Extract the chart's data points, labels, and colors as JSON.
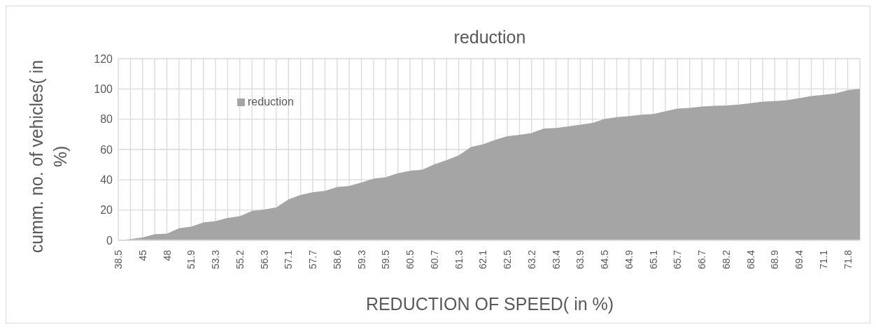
{
  "chart_data": {
    "type": "area",
    "title": "reduction",
    "xlabel": "REDUCTION OF SPEED( in %)",
    "ylabel": "cumm. no. of vehicles( in %)",
    "categories": [
      "38.5",
      null,
      "45",
      null,
      "48",
      null,
      "51.9",
      null,
      "53.3",
      null,
      "55.2",
      null,
      "56.3",
      null,
      "57.1",
      null,
      "57.7",
      null,
      "58.6",
      null,
      "59.3",
      null,
      "59.5",
      null,
      "60.5",
      null,
      "60.7",
      null,
      "61.3",
      null,
      "62.1",
      null,
      "62.5",
      null,
      "63.2",
      null,
      "63.4",
      null,
      "63.9",
      null,
      "64.5",
      null,
      "64.9",
      null,
      "65.1",
      null,
      "65.7",
      null,
      "66.7",
      null,
      "68.2",
      null,
      "68.4",
      null,
      "68.9",
      null,
      "69.4",
      null,
      "71.1",
      null,
      "71.8",
      null
    ],
    "series": [
      {
        "name": "reduction",
        "color": "#a5a5a5",
        "values": [
          0,
          0.8,
          1.8,
          4,
          4.4,
          8,
          9,
          11.8,
          12.7,
          14.8,
          15.9,
          19.4,
          20.3,
          21.7,
          27,
          30,
          31.7,
          32.7,
          35.2,
          35.9,
          38.2,
          40.7,
          41.7,
          44.3,
          45.9,
          46.6,
          50.2,
          53,
          56.1,
          61.6,
          63.5,
          66.4,
          68.8,
          69.7,
          70.9,
          73.8,
          74.2,
          75.2,
          76.4,
          77.5,
          80.2,
          81.4,
          82,
          83,
          83.4,
          85.3,
          87,
          87.5,
          88.4,
          88.8,
          89.1,
          89.7,
          90.6,
          91.6,
          92,
          92.5,
          93.9,
          95.3,
          96.1,
          97,
          99.2,
          100
        ]
      }
    ],
    "ylim": [
      0,
      120
    ],
    "yticks": [
      0,
      20,
      40,
      60,
      80,
      100,
      120
    ],
    "grid": true,
    "legend": "top left"
  }
}
